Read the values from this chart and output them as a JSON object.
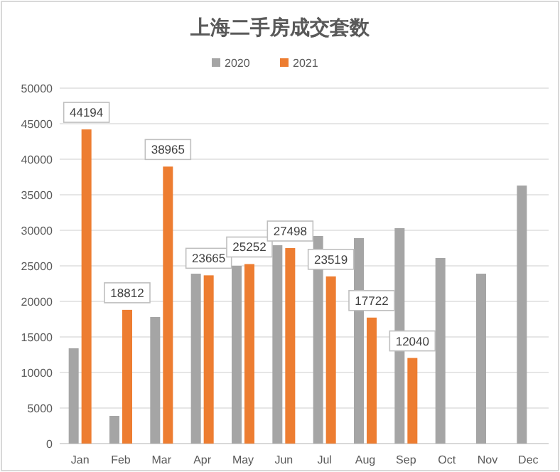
{
  "chart_data": {
    "type": "bar",
    "title": "上海二手房成交套数",
    "categories": [
      "Jan",
      "Feb",
      "Mar",
      "Apr",
      "May",
      "Jun",
      "Jul",
      "Aug",
      "Sep",
      "Oct",
      "Nov",
      "Dec"
    ],
    "series": [
      {
        "name": "2020",
        "color": "#a5a5a5",
        "values": [
          13400,
          3900,
          17800,
          23900,
          25000,
          27900,
          29200,
          28900,
          30300,
          26100,
          23900,
          36300
        ]
      },
      {
        "name": "2021",
        "color": "#ed7d31",
        "values": [
          44194,
          18812,
          38965,
          23665,
          25252,
          27498,
          23519,
          17722,
          12040,
          null,
          null,
          null
        ],
        "value_labels": [
          "44194",
          "18812",
          "38965",
          "23665",
          "25252",
          "27498",
          "23519",
          "17722",
          "12040",
          null,
          null,
          null
        ]
      }
    ],
    "ylim": [
      0,
      50000
    ],
    "yticks": [
      0,
      5000,
      10000,
      15000,
      20000,
      25000,
      30000,
      35000,
      40000,
      45000,
      50000
    ],
    "grid": "y",
    "legend": "top"
  }
}
